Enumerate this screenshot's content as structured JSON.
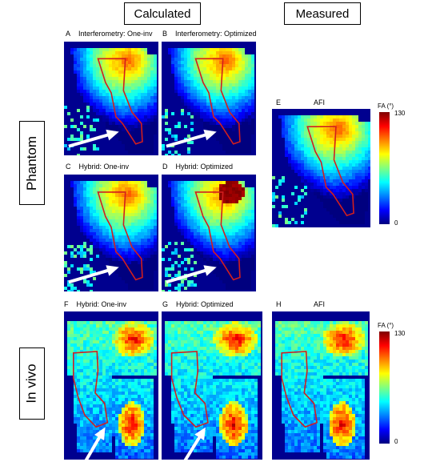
{
  "headers": {
    "calculated": "Calculated",
    "measured": "Measured"
  },
  "rows": {
    "phantom": "Phantom",
    "in_vivo": "In vivo"
  },
  "panels": {
    "A": {
      "letter": "A",
      "title": "Interferometry: One-inv"
    },
    "B": {
      "letter": "B",
      "title": "Interferometry: Optimized"
    },
    "C": {
      "letter": "C",
      "title": "Hybrid: One-inv"
    },
    "D": {
      "letter": "D",
      "title": "Hybrid: Optimized"
    },
    "E": {
      "letter": "E",
      "title": "AFI"
    },
    "F": {
      "letter": "F",
      "title": "Hybrid: One-inv"
    },
    "G": {
      "letter": "G",
      "title": "Hybrid: Optimized"
    },
    "H": {
      "letter": "H",
      "title": "AFI"
    }
  },
  "colorbars": {
    "phantom": {
      "title": "FA (°)",
      "max": "130",
      "min": "0"
    },
    "in_vivo": {
      "title": "FA (°)",
      "max": "130",
      "min": "0"
    }
  },
  "colors": {
    "background_map": "#00008f",
    "roi_outline": "#d21e1e",
    "arrow": "#ffffff",
    "colormap": [
      "#00007f",
      "#0000ff",
      "#0080ff",
      "#00ffff",
      "#80ff80",
      "#ffff00",
      "#ff8000",
      "#ff0000",
      "#7f0000"
    ]
  }
}
